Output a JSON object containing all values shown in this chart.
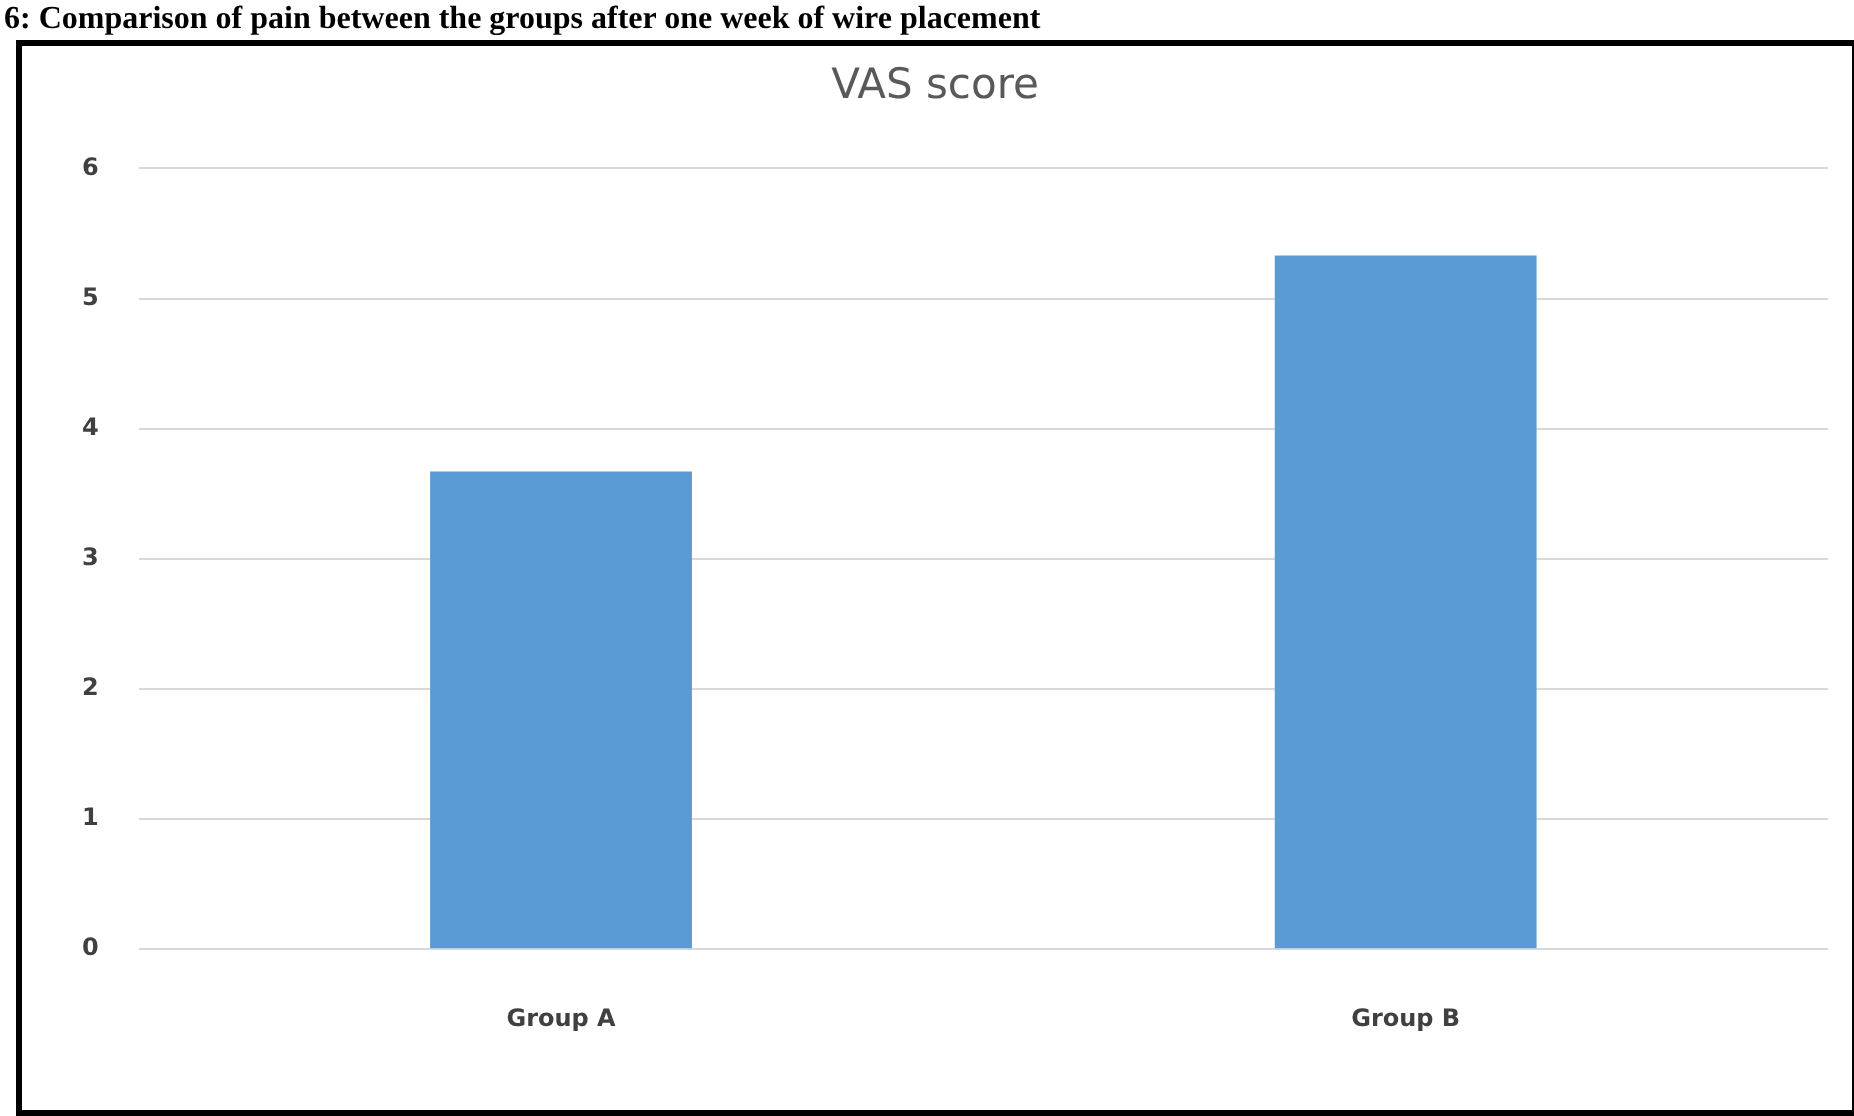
{
  "chart_data": {
    "type": "bar",
    "title": "VAS score",
    "annotations": [
      "6: Comparison of pain between the groups after one week of wire placement"
    ],
    "categories": [
      "Group A",
      "Group B"
    ],
    "values": [
      3.67,
      5.33
    ],
    "color": "#5b9bd5",
    "ylim": [
      0,
      6
    ],
    "yticks": [
      0,
      1,
      2,
      3,
      4,
      5,
      6
    ],
    "grid": "y"
  }
}
